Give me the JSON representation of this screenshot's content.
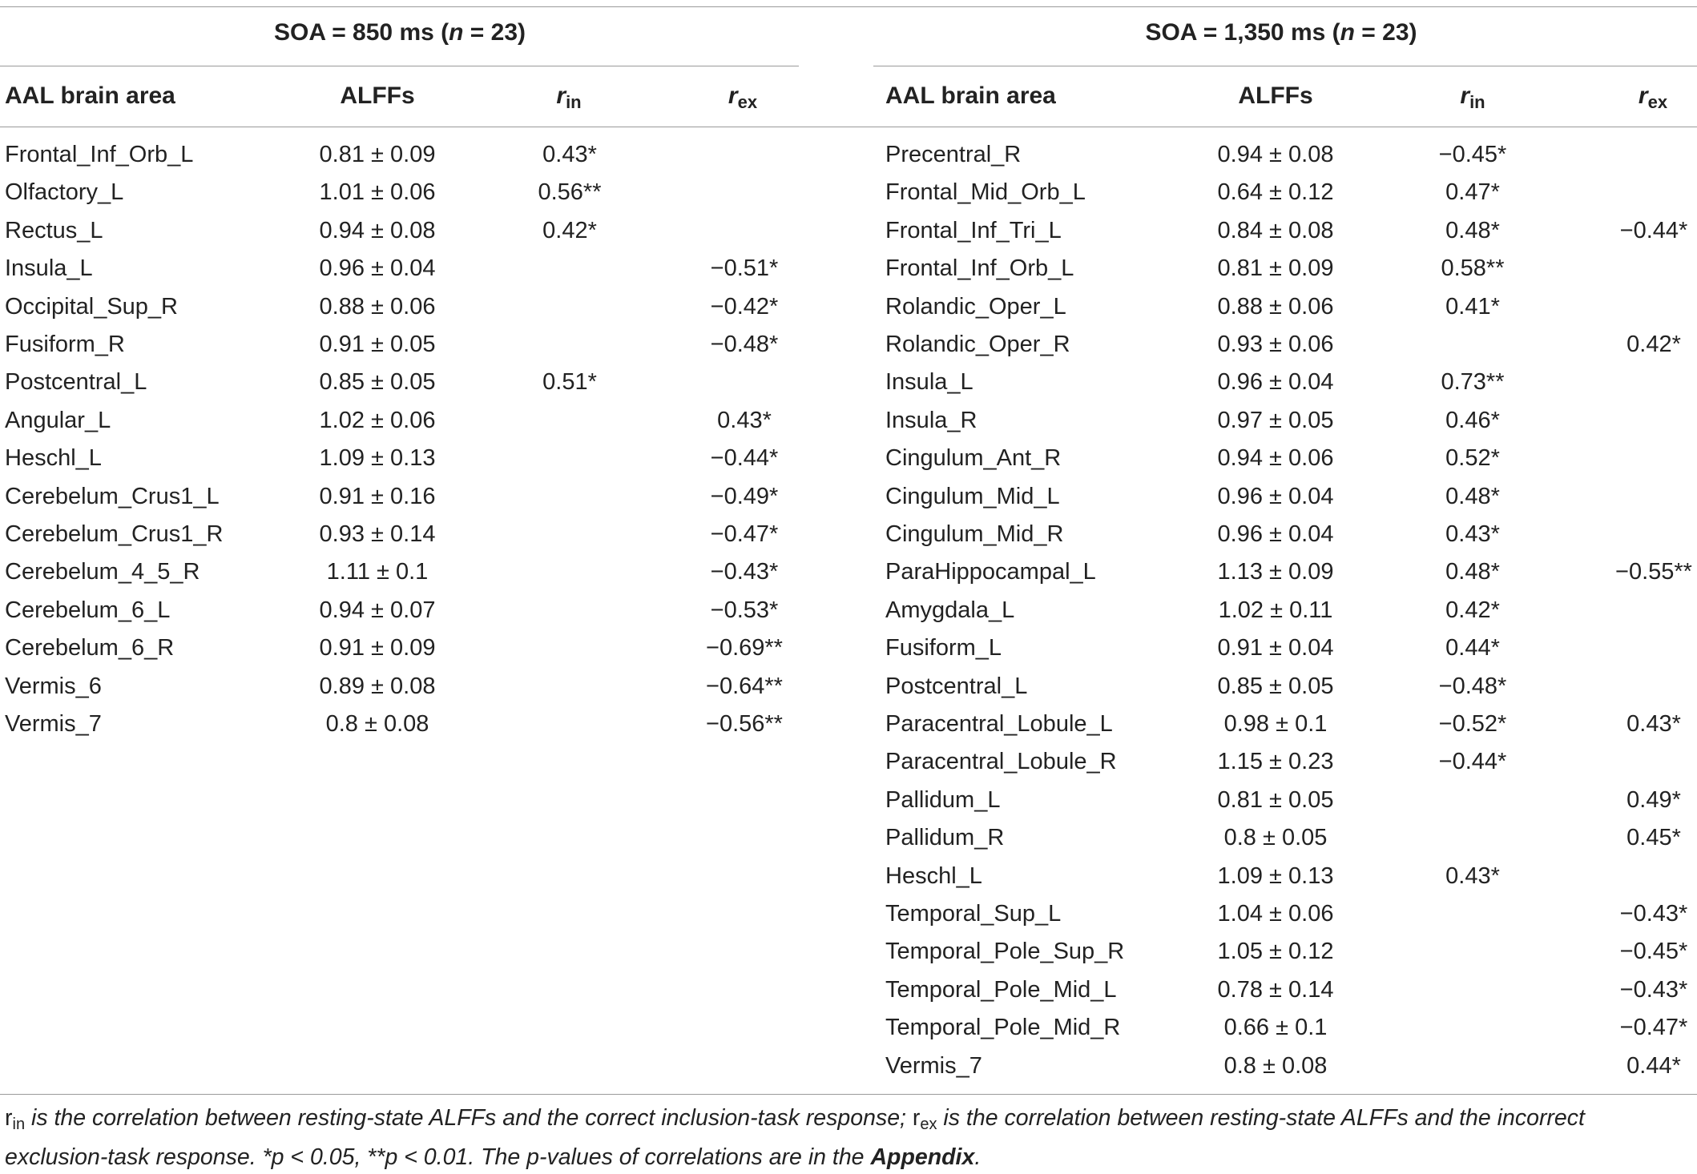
{
  "left_panel": {
    "group_title": "SOA = 850 ms (n = 23)",
    "group_title_parts": {
      "pre": "SOA = 850 ms (",
      "n": "n",
      "post": " = 23)"
    },
    "headers": {
      "area": "AAL brain area",
      "alffs": "ALFFs",
      "rin_base": "r",
      "rin_sub": "in",
      "rex_base": "r",
      "rex_sub": "ex"
    },
    "rows": [
      {
        "area": "Frontal_Inf_Orb_L",
        "alffs": "0.81 ± 0.09",
        "rin": "0.43*",
        "rex": ""
      },
      {
        "area": "Olfactory_L",
        "alffs": "1.01 ± 0.06",
        "rin": "0.56**",
        "rex": ""
      },
      {
        "area": "Rectus_L",
        "alffs": "0.94 ± 0.08",
        "rin": "0.42*",
        "rex": ""
      },
      {
        "area": "Insula_L",
        "alffs": "0.96 ± 0.04",
        "rin": "",
        "rex": "−0.51*"
      },
      {
        "area": "Occipital_Sup_R",
        "alffs": "0.88 ± 0.06",
        "rin": "",
        "rex": "−0.42*"
      },
      {
        "area": "Fusiform_R",
        "alffs": "0.91 ± 0.05",
        "rin": "",
        "rex": "−0.48*"
      },
      {
        "area": "Postcentral_L",
        "alffs": "0.85 ± 0.05",
        "rin": "0.51*",
        "rex": ""
      },
      {
        "area": "Angular_L",
        "alffs": "1.02 ± 0.06",
        "rin": "",
        "rex": "0.43*"
      },
      {
        "area": "Heschl_L",
        "alffs": "1.09 ± 0.13",
        "rin": "",
        "rex": "−0.44*"
      },
      {
        "area": "Cerebelum_Crus1_L",
        "alffs": "0.91 ± 0.16",
        "rin": "",
        "rex": "−0.49*"
      },
      {
        "area": "Cerebelum_Crus1_R",
        "alffs": "0.93 ± 0.14",
        "rin": "",
        "rex": "−0.47*"
      },
      {
        "area": "Cerebelum_4_5_R",
        "alffs": "1.11 ± 0.1",
        "rin": "",
        "rex": "−0.43*"
      },
      {
        "area": "Cerebelum_6_L",
        "alffs": "0.94 ± 0.07",
        "rin": "",
        "rex": "−0.53*"
      },
      {
        "area": "Cerebelum_6_R",
        "alffs": "0.91 ± 0.09",
        "rin": "",
        "rex": "−0.69**"
      },
      {
        "area": "Vermis_6",
        "alffs": "0.89 ± 0.08",
        "rin": "",
        "rex": "−0.64**"
      },
      {
        "area": "Vermis_7",
        "alffs": "0.8 ± 0.08",
        "rin": "",
        "rex": "−0.56**"
      }
    ]
  },
  "right_panel": {
    "group_title": "SOA = 1,350 ms (n = 23)",
    "group_title_parts": {
      "pre": "SOA = 1,350 ms (",
      "n": "n",
      "post": " = 23)"
    },
    "headers": {
      "area": "AAL brain area",
      "alffs": "ALFFs",
      "rin_base": "r",
      "rin_sub": "in",
      "rex_base": "r",
      "rex_sub": "ex"
    },
    "rows": [
      {
        "area": "Precentral_R",
        "alffs": "0.94 ± 0.08",
        "rin": "−0.45*",
        "rex": ""
      },
      {
        "area": "Frontal_Mid_Orb_L",
        "alffs": "0.64 ± 0.12",
        "rin": "0.47*",
        "rex": ""
      },
      {
        "area": "Frontal_Inf_Tri_L",
        "alffs": "0.84 ± 0.08",
        "rin": "0.48*",
        "rex": "−0.44*"
      },
      {
        "area": "Frontal_Inf_Orb_L",
        "alffs": "0.81 ± 0.09",
        "rin": "0.58**",
        "rex": ""
      },
      {
        "area": "Rolandic_Oper_L",
        "alffs": "0.88 ± 0.06",
        "rin": "0.41*",
        "rex": ""
      },
      {
        "area": "Rolandic_Oper_R",
        "alffs": "0.93 ± 0.06",
        "rin": "",
        "rex": "0.42*"
      },
      {
        "area": "Insula_L",
        "alffs": "0.96 ± 0.04",
        "rin": "0.73**",
        "rex": ""
      },
      {
        "area": "Insula_R",
        "alffs": "0.97 ± 0.05",
        "rin": "0.46*",
        "rex": ""
      },
      {
        "area": "Cingulum_Ant_R",
        "alffs": "0.94 ± 0.06",
        "rin": "0.52*",
        "rex": ""
      },
      {
        "area": "Cingulum_Mid_L",
        "alffs": "0.96 ± 0.04",
        "rin": "0.48*",
        "rex": ""
      },
      {
        "area": "Cingulum_Mid_R",
        "alffs": "0.96 ± 0.04",
        "rin": "0.43*",
        "rex": ""
      },
      {
        "area": "ParaHippocampal_L",
        "alffs": "1.13 ± 0.09",
        "rin": "0.48*",
        "rex": "−0.55**"
      },
      {
        "area": "Amygdala_L",
        "alffs": "1.02 ± 0.11",
        "rin": "0.42*",
        "rex": ""
      },
      {
        "area": "Fusiform_L",
        "alffs": "0.91 ± 0.04",
        "rin": "0.44*",
        "rex": ""
      },
      {
        "area": "Postcentral_L",
        "alffs": "0.85 ± 0.05",
        "rin": "−0.48*",
        "rex": ""
      },
      {
        "area": "Paracentral_Lobule_L",
        "alffs": "0.98 ± 0.1",
        "rin": "−0.52*",
        "rex": "0.43*"
      },
      {
        "area": "Paracentral_Lobule_R",
        "alffs": "1.15 ± 0.23",
        "rin": "−0.44*",
        "rex": ""
      },
      {
        "area": "Pallidum_L",
        "alffs": "0.81 ± 0.05",
        "rin": "",
        "rex": "0.49*"
      },
      {
        "area": "Pallidum_R",
        "alffs": "0.8 ± 0.05",
        "rin": "",
        "rex": "0.45*"
      },
      {
        "area": "Heschl_L",
        "alffs": "1.09 ± 0.13",
        "rin": "0.43*",
        "rex": ""
      },
      {
        "area": "Temporal_Sup_L",
        "alffs": "1.04 ± 0.06",
        "rin": "",
        "rex": "−0.43*"
      },
      {
        "area": "Temporal_Pole_Sup_R",
        "alffs": "1.05 ± 0.12",
        "rin": "",
        "rex": "−0.45*"
      },
      {
        "area": "Temporal_Pole_Mid_L",
        "alffs": "0.78 ± 0.14",
        "rin": "",
        "rex": "−0.43*"
      },
      {
        "area": "Temporal_Pole_Mid_R",
        "alffs": "0.66 ± 0.1",
        "rin": "",
        "rex": "−0.47*"
      },
      {
        "area": "Vermis_7",
        "alffs": "0.8 ± 0.08",
        "rin": "",
        "rex": "0.44*"
      }
    ]
  },
  "footnote": {
    "rin_base": "r",
    "rin_sub": "in",
    "text1": " is the correlation between resting-state ALFFs and the correct inclusion-task response; ",
    "rex_base": "r",
    "rex_sub": "ex",
    "text2": " is the correlation between resting-state ALFFs and the incorrect exclusion-task response. *p < 0.05, **p < 0.01. The p-values of correlations are in the ",
    "appendix": "Appendix",
    "text3": "."
  }
}
